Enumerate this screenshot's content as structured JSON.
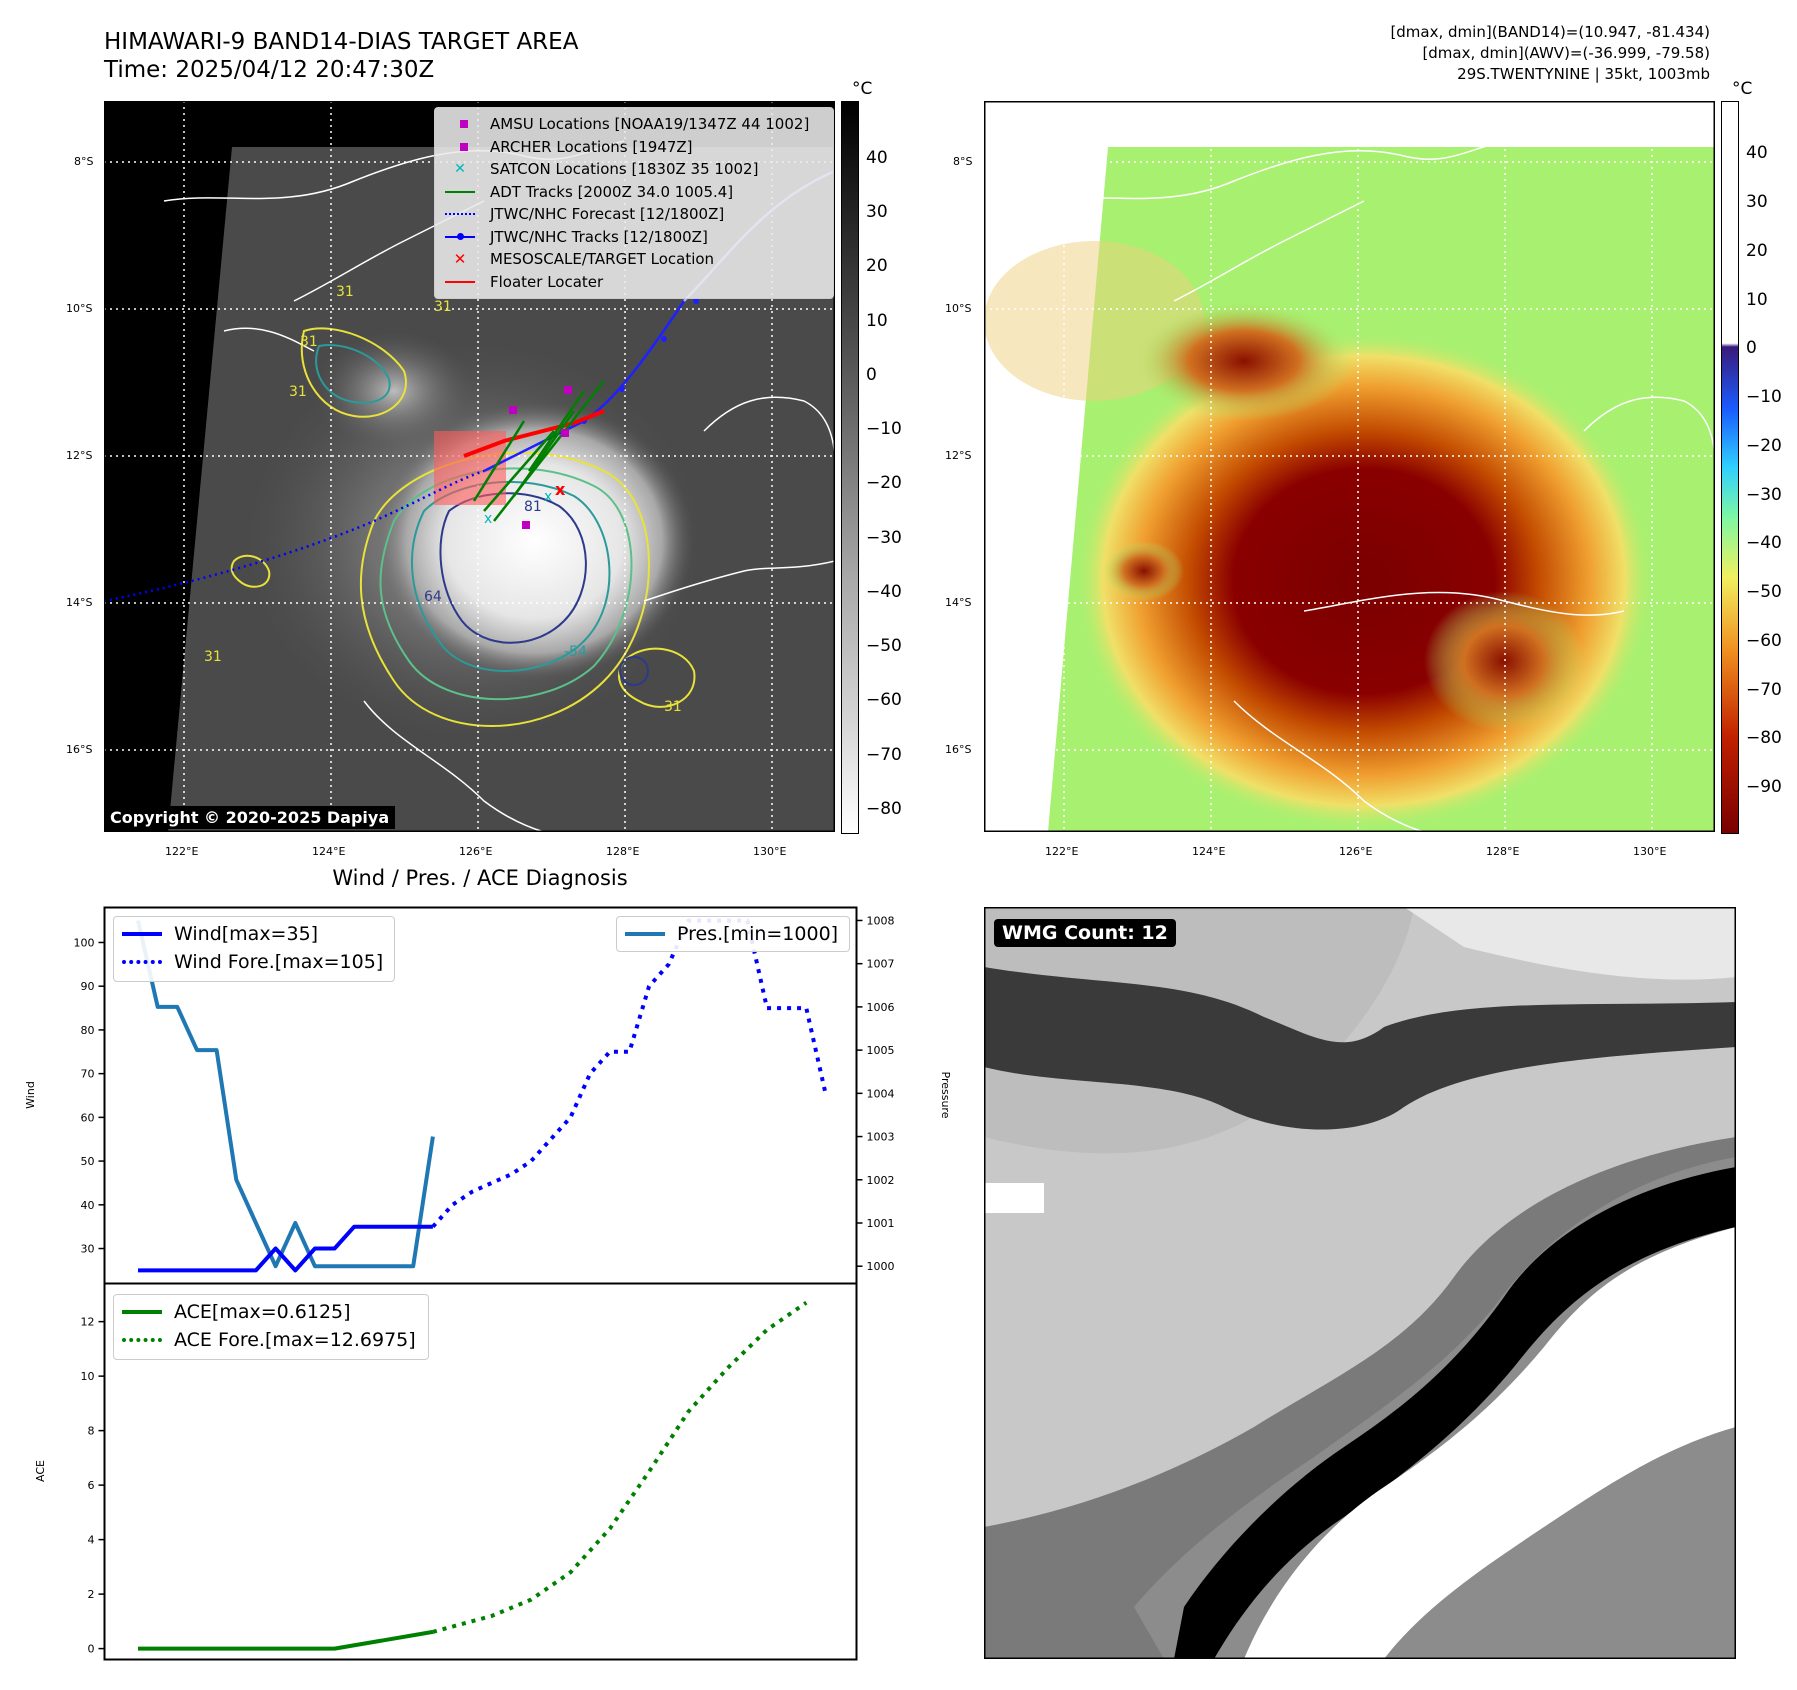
{
  "header": {
    "title_line1": "HIMAWARI-9 BAND14-DIAS TARGET AREA",
    "title_line2": "Time: 2025/04/12 20:47:30Z",
    "right_line1": "[dmax, dmin](BAND14)=(10.947, -81.434)",
    "right_line2": "[dmax, dmin](AWV)=(-36.999, -79.58)",
    "right_line3": "29S.TWENTYNINE | 35kt, 1003mb"
  },
  "map": {
    "lat_labels": [
      "8°S",
      "10°S",
      "12°S",
      "14°S",
      "16°S"
    ],
    "lon_labels": [
      "122°E",
      "124°E",
      "126°E",
      "128°E",
      "130°E"
    ],
    "copyright": "Copyright © 2020-2025 Dapiya",
    "legend": [
      {
        "label": "AMSU Locations [NOAA19/1347Z 44 1002]",
        "color": "#c000c0",
        "marker": "square"
      },
      {
        "label": "ARCHER Locations [1947Z]",
        "color": "#c000c0",
        "marker": "square"
      },
      {
        "label": "SATCON Locations [1830Z 35 1002]",
        "color": "#00b8b8",
        "marker": "x"
      },
      {
        "label": "ADT Tracks [2000Z 34.0 1005.4]",
        "color": "#008000",
        "marker": "line"
      },
      {
        "label": "JTWC/NHC Forecast [12/1800Z]",
        "color": "#0000ff",
        "marker": "dotted"
      },
      {
        "label": "JTWC/NHC Tracks [12/1800Z]",
        "color": "#0000ff",
        "marker": "line-dot"
      },
      {
        "label": "MESOSCALE/TARGET Location",
        "color": "#ff0000",
        "marker": "x"
      },
      {
        "label": "Floater Locater",
        "color": "#ff0000",
        "marker": "line"
      }
    ],
    "contour_labels": [
      "31",
      "31",
      "31",
      "31",
      "31",
      "31",
      "-54",
      "64",
      "81"
    ],
    "colorbar_left": {
      "unit": "°C",
      "ticks": [
        "40",
        "30",
        "20",
        "10",
        "0",
        "−10",
        "−20",
        "−30",
        "−40",
        "−50",
        "−60",
        "−70",
        "−80"
      ]
    },
    "colorbar_right": {
      "unit": "°C",
      "ticks": [
        "40",
        "30",
        "20",
        "10",
        "0",
        "−10",
        "−20",
        "−30",
        "−40",
        "−50",
        "−60",
        "−70",
        "−80",
        "−90"
      ]
    }
  },
  "diagnosis": {
    "title": "Wind / Pres. / ACE Diagnosis",
    "wind_axis_label": "Wind",
    "pressure_axis_label": "Pressure",
    "ace_axis_label": "ACE",
    "wind_ticks": [
      "100",
      "90",
      "80",
      "70",
      "60",
      "50",
      "40",
      "30"
    ],
    "pressure_ticks": [
      "1008",
      "1007",
      "1006",
      "1005",
      "1004",
      "1003",
      "1002",
      "1001",
      "1000"
    ],
    "ace_ticks": [
      "12",
      "10",
      "8",
      "6",
      "4",
      "2",
      "0"
    ],
    "legend_wind": "Wind[max=35]",
    "legend_wind_fore": "Wind Fore.[max=105]",
    "legend_pres": "Pres.[min=1000]",
    "legend_ace": "ACE[max=0.6125]",
    "legend_ace_fore": "ACE Fore.[max=12.6975]"
  },
  "wmg": {
    "label": "WMG Count: 12"
  },
  "colors": {
    "wind": "#0000ff",
    "pressure": "#1f77b4",
    "ace": "#008000",
    "target": "#ff0000"
  },
  "chart_data": [
    {
      "type": "line",
      "title": "Wind / Pres. / ACE Diagnosis",
      "ylabel": "Wind",
      "ylim": [
        22,
        108
      ],
      "series": [
        {
          "name": "Wind[max=35]",
          "x": [
            0,
            1,
            2,
            3,
            4,
            5,
            6,
            7,
            8,
            9,
            10,
            11,
            12,
            13,
            14,
            15
          ],
          "values": [
            25,
            25,
            25,
            25,
            25,
            25,
            25,
            30,
            25,
            30,
            30,
            35,
            35,
            35,
            35,
            35
          ]
        },
        {
          "name": "Wind Fore.[max=105]",
          "x": [
            15,
            16,
            17,
            18,
            19,
            20,
            21,
            22,
            23,
            24,
            25,
            26,
            27,
            28,
            29,
            30,
            31,
            32,
            33,
            34,
            35
          ],
          "values": [
            35,
            40,
            43,
            45,
            47,
            50,
            55,
            60,
            70,
            75,
            75,
            90,
            95,
            105,
            105,
            105,
            105,
            85,
            85,
            85,
            65
          ]
        }
      ]
    },
    {
      "type": "line",
      "ylabel": "Pressure",
      "ylim": [
        999.6,
        1008.3
      ],
      "series": [
        {
          "name": "Pres.[min=1000]",
          "x": [
            0,
            1,
            2,
            3,
            4,
            5,
            6,
            7,
            8,
            9,
            10,
            11,
            12,
            13,
            14,
            15
          ],
          "values": [
            1008,
            1006,
            1006,
            1005,
            1005,
            1002,
            1001,
            1000,
            1001,
            1000,
            1000,
            1000,
            1000,
            1000,
            1000,
            1003
          ]
        }
      ]
    },
    {
      "type": "line",
      "ylabel": "ACE",
      "ylim": [
        -0.4,
        13.4
      ],
      "series": [
        {
          "name": "ACE[max=0.6125]",
          "x": [
            0,
            10,
            15
          ],
          "values": [
            0,
            0,
            0.6125
          ]
        },
        {
          "name": "ACE Fore.[max=12.6975]",
          "x": [
            15,
            18,
            20,
            22,
            24,
            26,
            28,
            30,
            32,
            34
          ],
          "values": [
            0.6125,
            1.2,
            1.8,
            2.8,
            4.4,
            6.5,
            8.7,
            10.3,
            11.7,
            12.6975
          ]
        }
      ]
    }
  ]
}
